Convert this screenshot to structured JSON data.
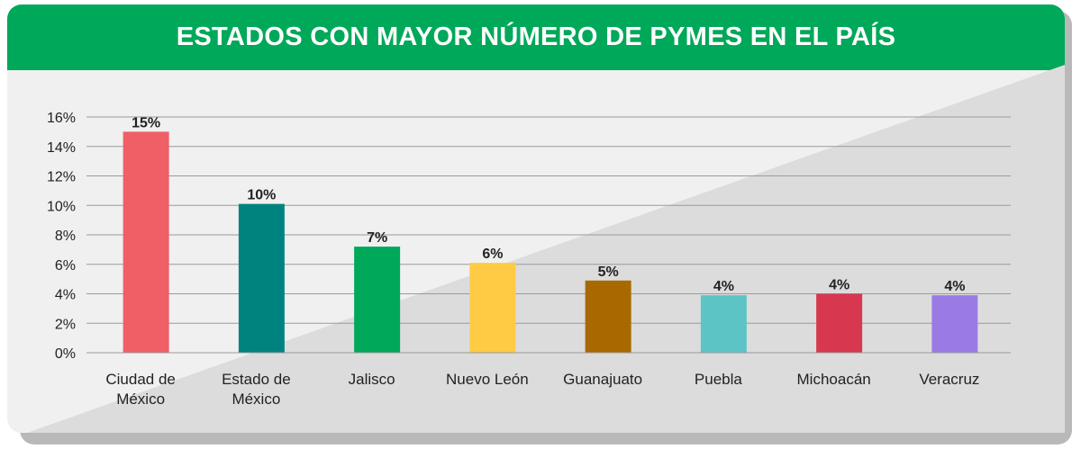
{
  "title": "ESTADOS CON MAYOR NÚMERO DE PYMES EN EL PAÍS",
  "colors": {
    "header": "#00a859",
    "background": "#f0f0f0",
    "diagonal": "#dcdcdc",
    "grid": "#9a9a9a"
  },
  "chart_data": {
    "type": "bar",
    "categories": [
      "Ciudad de México",
      "Estado de México",
      "Jalisco",
      "Nuevo León",
      "Guanajuato",
      "Puebla",
      "Michoacán",
      "Veracruz"
    ],
    "category_lines": [
      [
        "Ciudad de",
        "México"
      ],
      [
        "Estado de",
        "México"
      ],
      [
        "Jalisco"
      ],
      [
        "Nuevo León"
      ],
      [
        "Guanajuato"
      ],
      [
        "Puebla"
      ],
      [
        "Michoacán"
      ],
      [
        "Veracruz"
      ]
    ],
    "values": [
      15.0,
      10.1,
      7.2,
      6.1,
      4.9,
      3.9,
      4.0,
      3.9
    ],
    "data_labels": [
      "15%",
      "10%",
      "7%",
      "6%",
      "5%",
      "4%",
      "4%",
      "4%"
    ],
    "bar_colors": [
      "#f05f66",
      "#00837f",
      "#00a85a",
      "#ffcb44",
      "#a86a00",
      "#5dc4c6",
      "#d8384f",
      "#9a7be6"
    ],
    "yticks": [
      "0%",
      "2%",
      "4%",
      "6%",
      "8%",
      "10%",
      "12%",
      "14%",
      "16%"
    ],
    "ylim": [
      0,
      16
    ],
    "grid": true
  }
}
